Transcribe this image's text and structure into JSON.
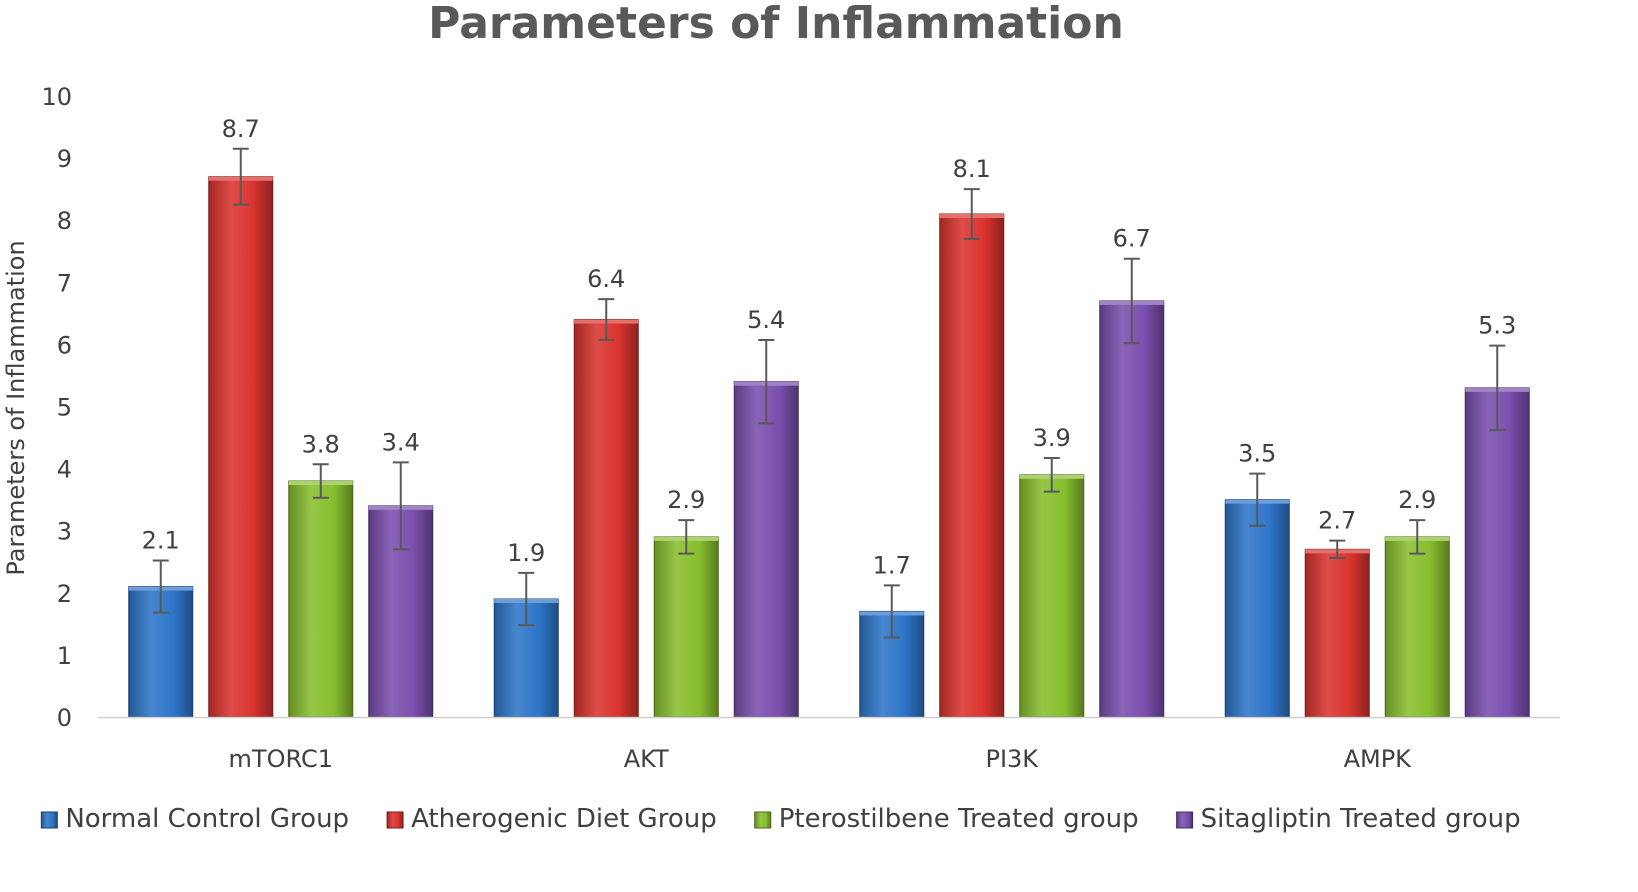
{
  "chart_data": {
    "type": "bar",
    "title": "Parameters of Inflammation",
    "xlabel": "",
    "ylabel": "Parameters of Inflammation",
    "ylim": [
      0,
      10
    ],
    "yticks": [
      "0",
      "1",
      "2",
      "3",
      "4",
      "5",
      "6",
      "7",
      "8",
      "9",
      "10"
    ],
    "grid": false,
    "legend_position": "bottom",
    "categories": [
      "mTORC1",
      "AKT",
      "PI3K",
      "AMPK"
    ],
    "series": [
      {
        "name": "Normal Control Group",
        "color": "#2E75C9",
        "values": [
          2.1,
          1.9,
          1.7,
          3.5
        ],
        "labels": [
          "2.1",
          "1.9",
          "1.7",
          "3.5"
        ],
        "errors": [
          0.42,
          0.42,
          0.42,
          0.42
        ]
      },
      {
        "name": "Atherogenic Diet Group",
        "color": "#D9342F",
        "values": [
          8.7,
          6.4,
          8.1,
          2.7
        ],
        "labels": [
          "8.7",
          "6.4",
          "8.1",
          "2.7"
        ],
        "errors": [
          0.45,
          0.33,
          0.4,
          0.14
        ]
      },
      {
        "name": "Pterostilbene Treated group",
        "color": "#88BE2F",
        "values": [
          3.8,
          2.9,
          3.9,
          2.9
        ],
        "labels": [
          "3.8",
          "2.9",
          "3.9",
          "2.9"
        ],
        "errors": [
          0.27,
          0.27,
          0.27,
          0.27
        ]
      },
      {
        "name": "Sitagliptin Treated group",
        "color": "#7A4FAE",
        "values": [
          3.4,
          5.4,
          6.7,
          5.3
        ],
        "labels": [
          "3.4",
          "5.4",
          "6.7",
          "5.3"
        ],
        "errors": [
          0.7,
          0.67,
          0.68,
          0.68
        ]
      }
    ]
  }
}
